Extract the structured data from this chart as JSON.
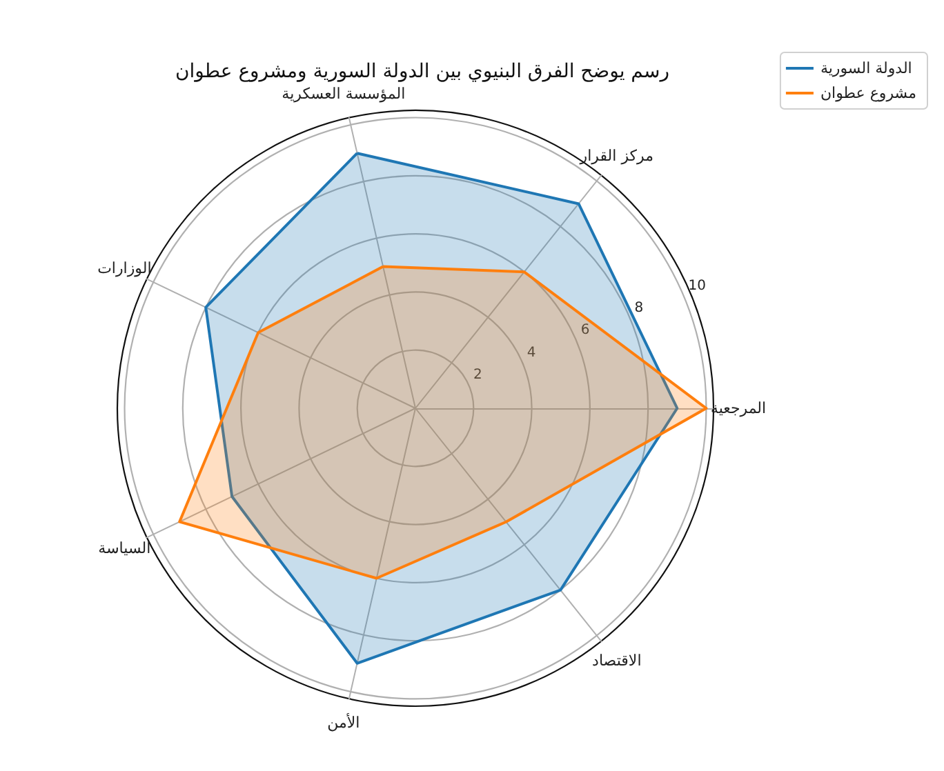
{
  "chart_data": {
    "type": "radar",
    "title": "رسم يوضح الفرق البنيوي بين الدولة السورية ومشروع عطوان",
    "categories": [
      "المؤسسة العسكرية",
      "مركز القرار",
      "المرجعية",
      "الاقتصاد",
      "الأمن",
      "السياسة",
      "الوزارات"
    ],
    "series": [
      {
        "name": "الدولة السورية",
        "color": "#1f77b4",
        "values": [
          9,
          9,
          9,
          8,
          9,
          7,
          8
        ]
      },
      {
        "name": "مشروع عطوان",
        "color": "#ff7f0e",
        "values": [
          5,
          6,
          10,
          5,
          6,
          9,
          6
        ]
      }
    ],
    "ylim": [
      0,
      10.25
    ],
    "yticks": [
      2,
      4,
      6,
      8,
      10
    ],
    "grid": true,
    "legend": "top right"
  }
}
